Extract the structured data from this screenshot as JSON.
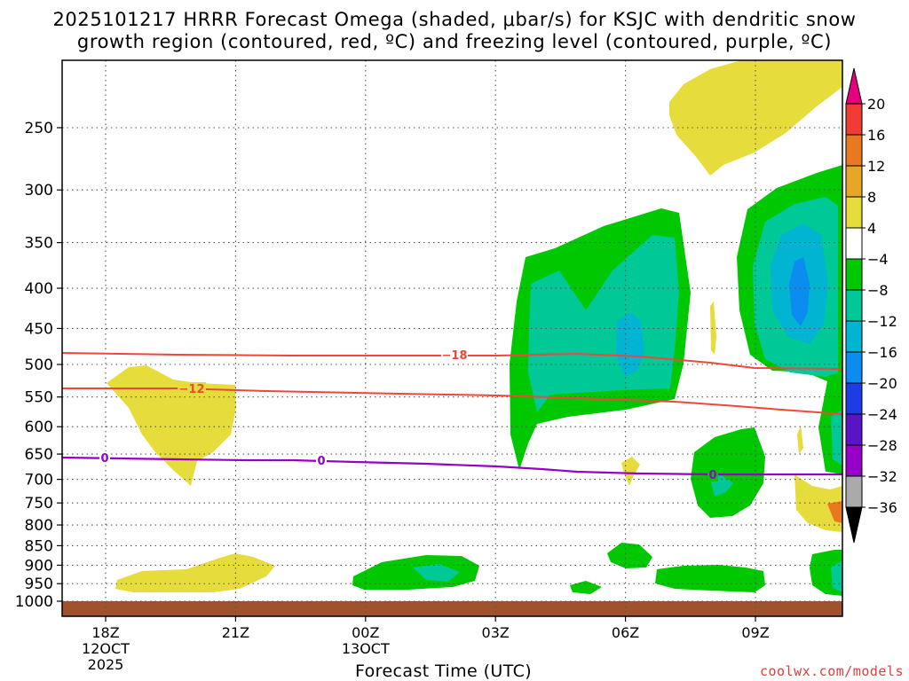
{
  "title": {
    "line1": "2025101217 HRRR Forecast Omega (shaded, μbar/s) for KSJC with dendritic snow",
    "line2": "growth region (contoured, red, ºC) and freezing level (contoured, purple, ºC)"
  },
  "credit": "coolwx.com/models",
  "chart_data": {
    "type": "time-height cross section",
    "title": "2025101217 HRRR Forecast Omega (shaded, μbar/s) for KSJC with dendritic snow growth region (contoured, red, ºC) and freezing level (contoured, purple, ºC)",
    "xlabel": "Forecast Time (UTC)",
    "ylabel": "",
    "x_ticks": [
      {
        "label": "18Z",
        "sub": [
          "12OCT",
          "2025"
        ]
      },
      {
        "label": "21Z",
        "sub": []
      },
      {
        "label": "00Z",
        "sub": [
          "13OCT"
        ]
      },
      {
        "label": "03Z",
        "sub": []
      },
      {
        "label": "06Z",
        "sub": []
      },
      {
        "label": "09Z",
        "sub": []
      }
    ],
    "y_ticks": [
      250,
      300,
      350,
      400,
      450,
      500,
      550,
      600,
      650,
      700,
      750,
      800,
      850,
      900,
      950,
      1000
    ],
    "y_axis": "pressure (mb), log scale, reversed",
    "grid": true,
    "colorbar": {
      "labels": [
        "20",
        "16",
        "12",
        "8",
        "4",
        "−4",
        "−8",
        "−12",
        "−16",
        "−20",
        "−24",
        "−28",
        "−32",
        "−36"
      ],
      "colors": [
        "#e6007e",
        "#f03c32",
        "#ea7820",
        "#e6a628",
        "#e6dc3c",
        "#ffffff",
        "#00c800",
        "#00c896",
        "#00b4d2",
        "#0a8cf0",
        "#1e3ce6",
        "#5a14c8",
        "#9600c8",
        "#aaaaaa",
        "#000000"
      ]
    },
    "contours": [
      {
        "name": "dendritic snow growth -18",
        "label": "−18",
        "color": "#f0463c"
      },
      {
        "name": "dendritic snow growth -12",
        "label": "−12",
        "color": "#f0463c"
      },
      {
        "name": "freezing level",
        "label": "0",
        "color": "#9600c8"
      }
    ],
    "ground_color": "#a0522d"
  }
}
